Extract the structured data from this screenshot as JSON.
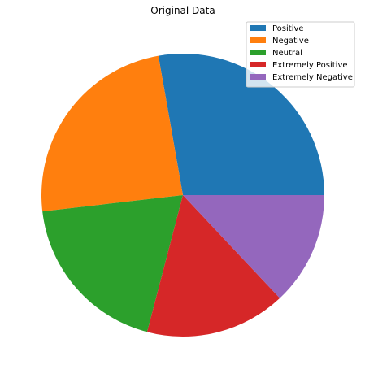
{
  "chart_data": {
    "type": "pie",
    "title": "Original Data",
    "categories": [
      "Positive",
      "Negative",
      "Neutral",
      "Extremely Positive",
      "Extremely Negative"
    ],
    "values": [
      27.8,
      24.1,
      19.1,
      16.1,
      13.0
    ],
    "colors": [
      "#1f77b4",
      "#ff7f0e",
      "#2ca02c",
      "#d62728",
      "#9467bd"
    ],
    "start_angle_deg": 0,
    "direction": "counterclockwise",
    "legend": {
      "position": "top-right",
      "entries": [
        "Positive",
        "Negative",
        "Neutral",
        "Extremely Positive",
        "Extremely Negative"
      ]
    }
  }
}
